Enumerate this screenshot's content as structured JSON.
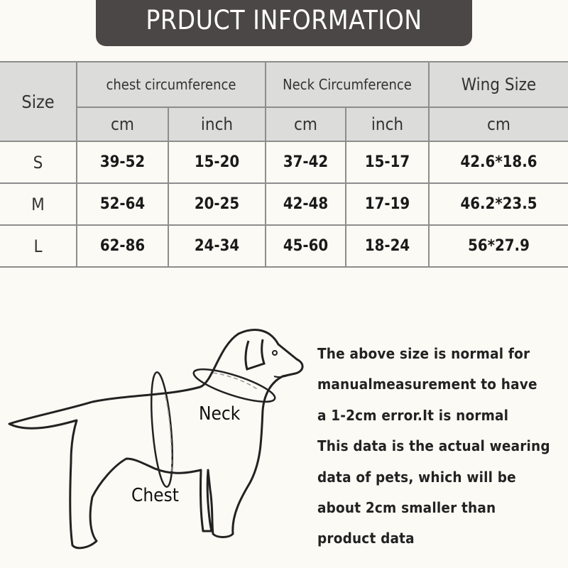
{
  "title": "PRDUCT INFORMATION",
  "table": {
    "size_header": "Size",
    "groups": [
      "chest circumference",
      "Neck Circumference",
      "Wing Size"
    ],
    "units": [
      "cm",
      "inch",
      "cm",
      "inch",
      "cm"
    ],
    "rows": [
      {
        "size": "S",
        "values": [
          "39-52",
          "15-20",
          "37-42",
          "15-17",
          "42.6*18.6"
        ]
      },
      {
        "size": "M",
        "values": [
          "52-64",
          "20-25",
          "42-48",
          "17-19",
          "46.2*23.5"
        ]
      },
      {
        "size": "L",
        "values": [
          "62-86",
          "24-34",
          "45-60",
          "18-24",
          "56*27.9"
        ]
      }
    ]
  },
  "diagram": {
    "neck_label": "Neck",
    "chest_label": "Chest"
  },
  "note_lines": [
    "The above size is normal for",
    "manualmeasurement to have",
    "a 1-2cm error.It is normal",
    "This data is the actual wearing",
    "data of pets, which will be",
    "about 2cm smaller than",
    "product data"
  ],
  "colors": {
    "banner": "#4a4746",
    "header_bg": "#dcdcdb",
    "background": "#fbfaf4"
  }
}
